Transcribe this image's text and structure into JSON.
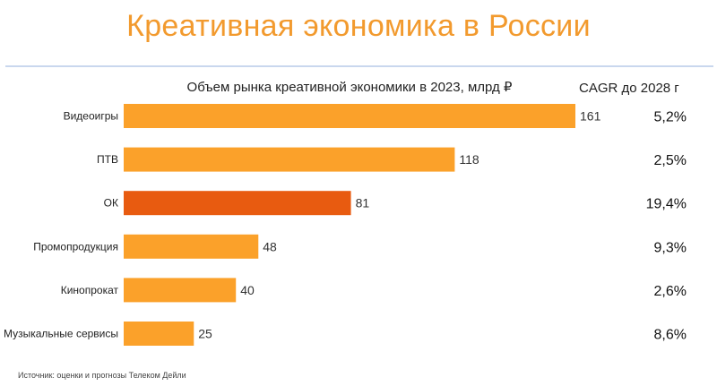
{
  "slide": {
    "title": "Креативная экономика в России",
    "source": "Источник: оценки и прогнозы Телеком Дейли"
  },
  "chart_data": {
    "type": "bar",
    "orientation": "horizontal",
    "title": "Объем рынка креативной экономики в 2023, млрд ₽",
    "categories": [
      "Видеоигры",
      "ПТВ",
      "ОК",
      "Промопродукция",
      "Кинопрокат",
      "Музыкальные сервисы"
    ],
    "values": [
      161,
      118,
      81,
      48,
      40,
      25
    ],
    "value_labels": [
      "161",
      "118",
      "81",
      "48",
      "40",
      "25"
    ],
    "highlight_index": 2,
    "colors": {
      "bar": "#fba12a",
      "highlight": "#e85b10"
    },
    "xlim": [
      0,
      161
    ],
    "grid": false,
    "cagr": {
      "header": "CAGR до 2028 г",
      "values": [
        "5,2%",
        "2,5%",
        "19,4%",
        "9,3%",
        "2,6%",
        "8,6%"
      ]
    }
  }
}
